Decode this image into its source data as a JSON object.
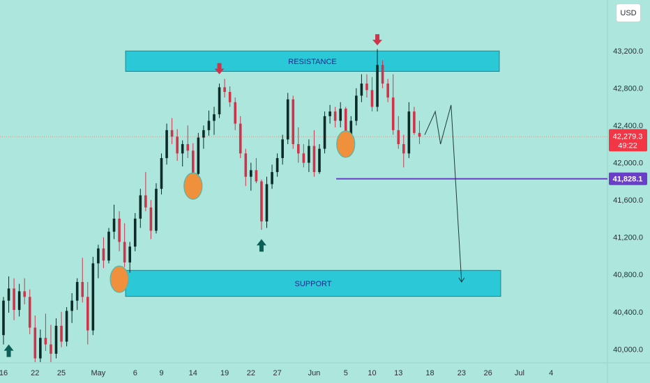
{
  "currency_button": "USD",
  "chart_data": {
    "type": "candlestick",
    "y_ticks": [
      "43,200.0",
      "42,800.0",
      "42,400.0",
      "42,000.0",
      "41,600.0",
      "41,200.0",
      "40,800.0",
      "40,400.0",
      "40,000.0"
    ],
    "y_tick_values": [
      43200,
      42800,
      42400,
      42000,
      41600,
      41200,
      40800,
      40400,
      40000
    ],
    "ylim": [
      39860,
      43560
    ],
    "x_ticks": [
      "16",
      "22",
      "25",
      "May",
      "6",
      "9",
      "14",
      "19",
      "22",
      "27",
      "Jun",
      "5",
      "10",
      "13",
      "18",
      "23",
      "26",
      "Jul",
      "4"
    ],
    "x_tick_index": [
      0,
      6,
      11,
      18,
      25,
      30,
      36,
      42,
      47,
      52,
      59,
      65,
      70,
      75,
      81,
      87,
      92,
      98,
      104
    ],
    "last_price": {
      "label": "42,279.3",
      "countdown": "49:22",
      "value": 42279.3,
      "color": "#f23645"
    },
    "horizontal_level": {
      "label": "41,828.1",
      "value": 41828.1,
      "color": "#6a3fc7"
    },
    "zones": [
      {
        "label": "RESISTANCE",
        "from": 42980,
        "to": 43200,
        "color": "#2bc8d8"
      },
      {
        "label": "SUPPORT",
        "from": 40565,
        "to": 40845,
        "color": "#2bc8d8"
      }
    ],
    "up_color": "#0b2b26",
    "down_color": "#d0344a",
    "candles": [
      [
        0,
        40150,
        40560,
        40050,
        40520
      ],
      [
        1,
        40520,
        40780,
        40390,
        40650
      ],
      [
        2,
        40650,
        40760,
        40310,
        40420
      ],
      [
        3,
        40420,
        40700,
        40350,
        40620
      ],
      [
        4,
        40620,
        40760,
        40480,
        40560
      ],
      [
        5,
        40560,
        40640,
        40160,
        40230
      ],
      [
        6,
        40230,
        40360,
        39860,
        39900
      ],
      [
        7,
        39900,
        40210,
        39860,
        40120
      ],
      [
        8,
        40120,
        40380,
        39980,
        40050
      ],
      [
        9,
        40050,
        40260,
        39860,
        39950
      ],
      [
        10,
        39950,
        40330,
        39900,
        40250
      ],
      [
        11,
        40250,
        40400,
        40020,
        40080
      ],
      [
        12,
        40080,
        40450,
        40030,
        40410
      ],
      [
        13,
        40410,
        40600,
        40280,
        40520
      ],
      [
        14,
        40520,
        40760,
        40420,
        40720
      ],
      [
        15,
        40720,
        40980,
        40500,
        40560
      ],
      [
        16,
        40560,
        40720,
        40050,
        40200
      ],
      [
        17,
        40200,
        40990,
        40150,
        40920
      ],
      [
        18,
        40920,
        41120,
        40760,
        41080
      ],
      [
        19,
        41080,
        41200,
        40870,
        40950
      ],
      [
        20,
        40950,
        41300,
        40920,
        41260
      ],
      [
        21,
        41260,
        41550,
        41180,
        41400
      ],
      [
        22,
        41400,
        41480,
        41050,
        41150
      ],
      [
        23,
        41150,
        41350,
        40880,
        40930
      ],
      [
        24,
        40930,
        41150,
        40820,
        41100
      ],
      [
        25,
        41100,
        41460,
        41050,
        41400
      ],
      [
        26,
        41400,
        41720,
        41300,
        41650
      ],
      [
        27,
        41650,
        41900,
        41480,
        41520
      ],
      [
        28,
        41520,
        41600,
        41180,
        41270
      ],
      [
        29,
        41270,
        41780,
        41240,
        41720
      ],
      [
        30,
        41720,
        42100,
        41660,
        42050
      ],
      [
        31,
        42050,
        42420,
        41980,
        42350
      ],
      [
        32,
        42350,
        42480,
        42200,
        42280
      ],
      [
        33,
        42280,
        42360,
        42020,
        42100
      ],
      [
        34,
        42100,
        42240,
        41960,
        42200
      ],
      [
        35,
        42200,
        42400,
        42050,
        42130
      ],
      [
        36,
        42130,
        42210,
        41820,
        41880
      ],
      [
        37,
        41880,
        42320,
        41850,
        42270
      ],
      [
        38,
        42270,
        42400,
        42150,
        42350
      ],
      [
        39,
        42350,
        42560,
        42290,
        42450
      ],
      [
        40,
        42450,
        42600,
        42300,
        42520
      ],
      [
        41,
        42520,
        42850,
        42480,
        42810
      ],
      [
        42,
        42810,
        42900,
        42700,
        42760
      ],
      [
        43,
        42760,
        42820,
        42600,
        42650
      ],
      [
        44,
        42650,
        42700,
        42350,
        42420
      ],
      [
        45,
        42420,
        42500,
        42050,
        42100
      ],
      [
        46,
        42100,
        42150,
        41750,
        41850
      ],
      [
        47,
        41850,
        42000,
        41700,
        41920
      ],
      [
        48,
        41920,
        42050,
        41780,
        41800
      ],
      [
        49,
        41800,
        41820,
        41280,
        41370
      ],
      [
        50,
        41370,
        41850,
        41300,
        41770
      ],
      [
        51,
        41770,
        41980,
        41720,
        41900
      ],
      [
        52,
        41900,
        42100,
        41850,
        42050
      ],
      [
        53,
        42050,
        42300,
        41980,
        42250
      ],
      [
        54,
        42250,
        42750,
        42200,
        42680
      ],
      [
        55,
        42680,
        42720,
        42150,
        42200
      ],
      [
        56,
        42200,
        42380,
        42000,
        42100
      ],
      [
        57,
        42100,
        42200,
        41950,
        42000
      ],
      [
        58,
        42000,
        42250,
        41900,
        42180
      ],
      [
        59,
        42180,
        42350,
        41850,
        41900
      ],
      [
        60,
        41900,
        42200,
        41880,
        42150
      ],
      [
        61,
        42150,
        42550,
        42100,
        42500
      ],
      [
        62,
        42500,
        42620,
        42420,
        42550
      ],
      [
        63,
        42550,
        42600,
        42380,
        42450
      ],
      [
        64,
        42450,
        42650,
        42380,
        42580
      ],
      [
        65,
        42580,
        42600,
        42250,
        42280
      ],
      [
        66,
        42280,
        42500,
        42230,
        42450
      ],
      [
        67,
        42450,
        42800,
        42400,
        42720
      ],
      [
        68,
        42720,
        42950,
        42650,
        42850
      ],
      [
        69,
        42850,
        42950,
        42700,
        42780
      ],
      [
        70,
        42780,
        42920,
        42550,
        42600
      ],
      [
        71,
        42600,
        43220,
        42550,
        43050
      ],
      [
        72,
        43050,
        43100,
        42800,
        42850
      ],
      [
        73,
        42850,
        42900,
        42650,
        42700
      ],
      [
        74,
        42700,
        42950,
        42300,
        42350
      ],
      [
        75,
        42350,
        42500,
        42150,
        42200
      ],
      [
        76,
        42200,
        42300,
        41950,
        42100
      ],
      [
        77,
        42100,
        42650,
        42050,
        42550
      ],
      [
        78,
        42550,
        42600,
        42300,
        42320
      ],
      [
        79,
        42320,
        42450,
        42200,
        42280
      ]
    ],
    "projection_path_values": [
      [
        80,
        42300
      ],
      [
        82,
        42550
      ],
      [
        83,
        42200
      ],
      [
        85,
        42620
      ],
      [
        87,
        40720
      ]
    ],
    "markers": [
      {
        "type": "down-arrow",
        "index": 41,
        "value": 42950,
        "color": "#d0344a"
      },
      {
        "type": "down-arrow",
        "index": 71,
        "value": 43260,
        "color": "#d0344a"
      },
      {
        "type": "up-arrow",
        "index": 49,
        "value": 41180,
        "color": "#0d5e57"
      },
      {
        "type": "up-arrow",
        "index": 1,
        "value": 40050,
        "color": "#0d5e57"
      }
    ],
    "circles": [
      {
        "index": 22,
        "value": 40750
      },
      {
        "index": 36,
        "value": 41750
      },
      {
        "index": 65,
        "value": 42200
      }
    ]
  }
}
